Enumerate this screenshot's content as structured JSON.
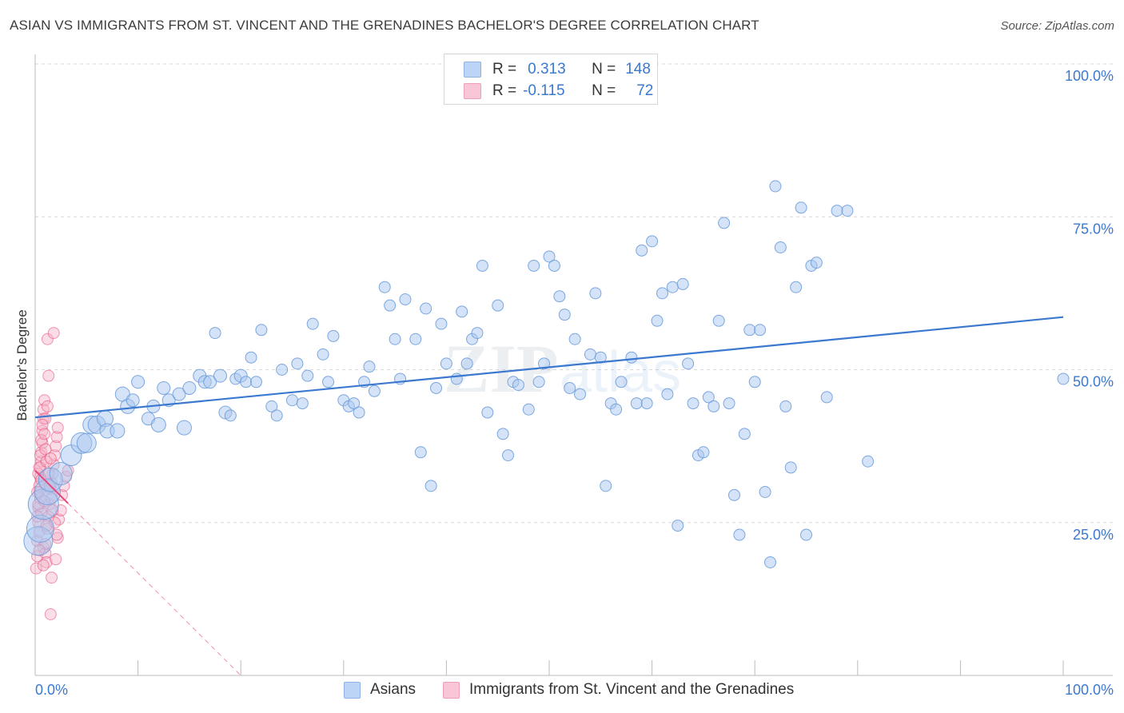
{
  "title": "ASIAN VS IMMIGRANTS FROM ST. VINCENT AND THE GRENADINES BACHELOR'S DEGREE CORRELATION CHART",
  "source": "Source: ZipAtlas.com",
  "legend": {
    "rows": [
      {
        "r_label": "R =",
        "r_value": "0.313",
        "n_label": "N =",
        "n_value": "148"
      },
      {
        "r_label": "R =",
        "r_value": "-0.115",
        "n_label": "N =",
        "n_value": "72"
      }
    ]
  },
  "bottom_legend": {
    "asians": "Asians",
    "immigrants": "Immigrants from St. Vincent and the Grenadines"
  },
  "colors": {
    "blue": "#3b78cf",
    "blue_fill": "#aac8f0",
    "pink": "#e8457a",
    "pink_fill": "#f5b3c8",
    "grid": "#d9d9d9",
    "axis_text": "#3b78cf"
  },
  "chart_data": {
    "type": "scatter",
    "xlabel": "",
    "ylabel": "Bachelor's Degree",
    "x_tick_labels": [
      "0.0%",
      "100.0%"
    ],
    "y_tick_labels": [
      "100.0%",
      "75.0%",
      "50.0%",
      "25.0%"
    ],
    "xlim": [
      0,
      100
    ],
    "ylim": [
      0,
      100
    ],
    "grid": "horizontal dashed",
    "legend_position": "top-center",
    "series": [
      {
        "name": "Asians",
        "trend": {
          "x": [
            0,
            100
          ],
          "y": [
            42.2,
            58.6
          ]
        },
        "points": [
          [
            0.3,
            22
          ],
          [
            0.5,
            24
          ],
          [
            0.8,
            28
          ],
          [
            1.2,
            30
          ],
          [
            1.5,
            32
          ],
          [
            2.5,
            33
          ],
          [
            3.5,
            36
          ],
          [
            4.5,
            38
          ],
          [
            5,
            38
          ],
          [
            5.5,
            41
          ],
          [
            6,
            41
          ],
          [
            6.8,
            42
          ],
          [
            7,
            40
          ],
          [
            8,
            40
          ],
          [
            8.5,
            46
          ],
          [
            9,
            44
          ],
          [
            9.5,
            45
          ],
          [
            10,
            48
          ],
          [
            11,
            42
          ],
          [
            11.5,
            44
          ],
          [
            12,
            41
          ],
          [
            12.5,
            47
          ],
          [
            13,
            45
          ],
          [
            14,
            46
          ],
          [
            14.5,
            40.5
          ],
          [
            15,
            47
          ],
          [
            16,
            49
          ],
          [
            16.5,
            48
          ],
          [
            17,
            48
          ],
          [
            17.5,
            56
          ],
          [
            18,
            49
          ],
          [
            18.5,
            43
          ],
          [
            19,
            42.5
          ],
          [
            19.5,
            48.5
          ],
          [
            20,
            49
          ],
          [
            20.5,
            48
          ],
          [
            21,
            52
          ],
          [
            21.5,
            48
          ],
          [
            22,
            56.5
          ],
          [
            23,
            44
          ],
          [
            23.5,
            42.5
          ],
          [
            24,
            50
          ],
          [
            25,
            45
          ],
          [
            25.5,
            51
          ],
          [
            26,
            44.5
          ],
          [
            26.5,
            49
          ],
          [
            27,
            57.5
          ],
          [
            28,
            52.5
          ],
          [
            28.5,
            48
          ],
          [
            29,
            55.5
          ],
          [
            30,
            45
          ],
          [
            30.5,
            44
          ],
          [
            31,
            44.5
          ],
          [
            31.5,
            43
          ],
          [
            32,
            48
          ],
          [
            32.5,
            50.5
          ],
          [
            33,
            46.5
          ],
          [
            34,
            63.5
          ],
          [
            34.5,
            60.5
          ],
          [
            35,
            55
          ],
          [
            35.5,
            48.5
          ],
          [
            36,
            61.5
          ],
          [
            37,
            55
          ],
          [
            37.5,
            36.5
          ],
          [
            38,
            60
          ],
          [
            38.5,
            31
          ],
          [
            39,
            47
          ],
          [
            39.5,
            57.5
          ],
          [
            40,
            51
          ],
          [
            41,
            48.5
          ],
          [
            41.5,
            59.5
          ],
          [
            42,
            51
          ],
          [
            42.5,
            55
          ],
          [
            43,
            56
          ],
          [
            43.5,
            67
          ],
          [
            44,
            43
          ],
          [
            45,
            60.5
          ],
          [
            45.5,
            39.5
          ],
          [
            46,
            36
          ],
          [
            46.5,
            48
          ],
          [
            47,
            47.5
          ],
          [
            48,
            43.5
          ],
          [
            48.5,
            67
          ],
          [
            49,
            48
          ],
          [
            49.5,
            51
          ],
          [
            50,
            68.5
          ],
          [
            50.5,
            67
          ],
          [
            51,
            62
          ],
          [
            51.5,
            59
          ],
          [
            52,
            47
          ],
          [
            52.5,
            55
          ],
          [
            53,
            46
          ],
          [
            54,
            52.5
          ],
          [
            54.5,
            62.5
          ],
          [
            55,
            52
          ],
          [
            55.5,
            31
          ],
          [
            56,
            44.5
          ],
          [
            56.5,
            43.5
          ],
          [
            57,
            48
          ],
          [
            58,
            52
          ],
          [
            58.5,
            44.5
          ],
          [
            59,
            69.5
          ],
          [
            59.5,
            44.5
          ],
          [
            60,
            71
          ],
          [
            60.5,
            58
          ],
          [
            61,
            62.5
          ],
          [
            61.5,
            46
          ],
          [
            62,
            63.5
          ],
          [
            62.5,
            24.5
          ],
          [
            63,
            64
          ],
          [
            63.5,
            51
          ],
          [
            64,
            44.5
          ],
          [
            64.5,
            36
          ],
          [
            65,
            36.5
          ],
          [
            65.5,
            45.5
          ],
          [
            66,
            44
          ],
          [
            66.5,
            58
          ],
          [
            67,
            74
          ],
          [
            67.5,
            44.5
          ],
          [
            68,
            29.5
          ],
          [
            68.5,
            23
          ],
          [
            69,
            39.5
          ],
          [
            69.5,
            56.5
          ],
          [
            70,
            48
          ],
          [
            70.5,
            56.5
          ],
          [
            71,
            30
          ],
          [
            71.5,
            18.5
          ],
          [
            72,
            80
          ],
          [
            72.5,
            70
          ],
          [
            73,
            44
          ],
          [
            73.5,
            34
          ],
          [
            74,
            63.5
          ],
          [
            74.5,
            76.5
          ],
          [
            75,
            23
          ],
          [
            75.5,
            67
          ],
          [
            76,
            67.5
          ],
          [
            77,
            45.5
          ],
          [
            78,
            76
          ],
          [
            79,
            76
          ],
          [
            81,
            35
          ],
          [
            100,
            48.5
          ]
        ],
        "sizes": [
          36,
          34,
          38,
          32,
          30,
          28,
          26,
          26,
          24,
          22,
          22,
          20,
          18,
          18,
          18,
          18,
          16,
          16,
          16,
          16,
          18,
          16,
          16,
          16,
          18,
          16,
          16,
          16,
          16,
          14,
          16,
          16,
          14,
          14,
          16,
          14,
          14,
          14,
          14,
          14,
          14,
          14,
          14,
          14,
          14,
          14,
          14,
          14,
          14,
          14,
          14,
          14,
          14,
          14,
          14,
          14,
          14,
          14,
          14,
          14,
          14,
          14,
          14,
          14,
          14,
          14,
          14,
          14,
          14,
          14,
          14,
          14,
          14,
          14,
          14,
          14,
          14,
          14,
          14,
          14,
          14,
          14,
          14,
          14,
          14,
          14,
          14,
          14,
          14,
          14,
          14,
          14,
          14,
          14,
          14,
          14,
          14,
          14,
          14,
          14,
          14,
          14,
          14,
          14,
          14,
          14,
          14,
          14,
          14,
          14,
          14,
          14,
          14,
          14,
          14,
          14,
          14,
          14,
          14,
          14,
          14,
          14,
          14,
          14,
          14,
          14,
          14,
          14,
          14,
          14,
          14,
          14,
          14,
          14,
          14,
          14,
          14,
          14,
          14,
          14,
          14,
          14,
          14,
          14,
          14,
          14,
          14,
          16
        ]
      },
      {
        "name": "Immigrants from St. Vincent and the Grenadines",
        "trend": {
          "x": [
            0,
            20
          ],
          "y": [
            33.5,
            0
          ]
        },
        "points": [
          [
            0.1,
            17.5
          ],
          [
            0.2,
            19.5
          ],
          [
            0.2,
            22
          ],
          [
            0.3,
            25
          ],
          [
            0.3,
            27.5
          ],
          [
            0.4,
            30
          ],
          [
            0.4,
            31
          ],
          [
            0.5,
            32.5
          ],
          [
            0.5,
            34
          ],
          [
            0.6,
            35
          ],
          [
            0.6,
            36.5
          ],
          [
            0.7,
            38
          ],
          [
            0.7,
            40
          ],
          [
            0.8,
            42
          ],
          [
            0.8,
            43.5
          ],
          [
            0.9,
            45
          ],
          [
            0.3,
            33
          ],
          [
            0.5,
            29
          ],
          [
            0.6,
            26.5
          ],
          [
            0.4,
            23.5
          ],
          [
            0.8,
            21
          ],
          [
            1,
            20
          ],
          [
            1.1,
            18.5
          ],
          [
            1.2,
            24
          ],
          [
            1.3,
            26
          ],
          [
            1.4,
            28
          ],
          [
            1.5,
            30.5
          ],
          [
            1.6,
            31.5
          ],
          [
            1.7,
            33
          ],
          [
            1.8,
            34.5
          ],
          [
            1.9,
            36
          ],
          [
            2,
            37.5
          ],
          [
            2.1,
            39
          ],
          [
            2.2,
            40.5
          ],
          [
            1,
            42
          ],
          [
            1.2,
            44
          ],
          [
            1.2,
            55
          ],
          [
            1.3,
            49
          ],
          [
            1.5,
            10
          ],
          [
            1.6,
            16
          ],
          [
            1.8,
            56
          ],
          [
            2,
            19
          ],
          [
            2.2,
            22.5
          ],
          [
            2.3,
            25.5
          ],
          [
            2.5,
            27
          ],
          [
            2.6,
            29.5
          ],
          [
            2.8,
            31
          ],
          [
            3,
            32.5
          ],
          [
            3.2,
            33.5
          ],
          [
            0.2,
            30
          ],
          [
            0.3,
            28
          ],
          [
            0.4,
            34
          ],
          [
            0.5,
            36
          ],
          [
            0.6,
            38.5
          ],
          [
            0.7,
            41
          ],
          [
            0.9,
            39.5
          ],
          [
            1,
            37
          ],
          [
            1.1,
            35
          ],
          [
            1.3,
            33
          ],
          [
            1.4,
            31
          ],
          [
            1.6,
            29
          ],
          [
            1.7,
            27
          ],
          [
            1.9,
            25
          ],
          [
            2.1,
            23
          ],
          [
            0.8,
            18
          ],
          [
            1,
            21.5
          ],
          [
            1.1,
            24.5
          ],
          [
            1.5,
            35.5
          ],
          [
            0.2,
            26
          ],
          [
            0.4,
            20.5
          ],
          [
            0.6,
            32
          ],
          [
            0.9,
            28.5
          ]
        ],
        "sizes": [
          14,
          14,
          14,
          14,
          14,
          14,
          14,
          14,
          14,
          14,
          14,
          14,
          14,
          14,
          14,
          14,
          14,
          14,
          14,
          14,
          14,
          14,
          14,
          14,
          14,
          14,
          14,
          14,
          14,
          14,
          14,
          14,
          14,
          14,
          14,
          14,
          14,
          14,
          14,
          14,
          14,
          14,
          14,
          14,
          14,
          14,
          14,
          14,
          14,
          14,
          14,
          14,
          14,
          14,
          14,
          14,
          14,
          14,
          14,
          14,
          14,
          14,
          14,
          14,
          14,
          14,
          14,
          14,
          14,
          14,
          14,
          14
        ]
      }
    ]
  }
}
